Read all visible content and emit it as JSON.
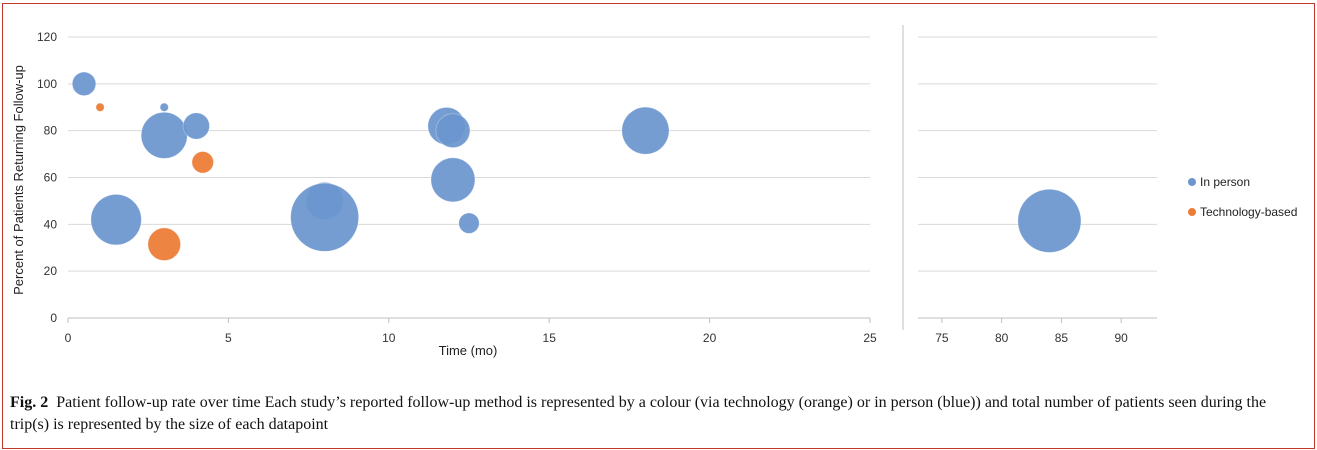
{
  "figure_label": "Fig. 2",
  "caption_text": "Patient follow-up rate over time Each study’s reported follow-up method is represented by a colour (via technology (orange) or in person (blue)) and total number of patients seen during the trip(s) is represented by the size of each datapoint",
  "chart_data": {
    "type": "scatter",
    "subtype": "bubble",
    "xlabel": "Time (mo)",
    "ylabel": "Percent of Patients Returning Follow-up",
    "ylim": [
      0,
      120
    ],
    "y_ticks": [
      0,
      20,
      40,
      60,
      80,
      100,
      120
    ],
    "x_segments": [
      {
        "xlim": [
          0,
          25
        ],
        "ticks": [
          0,
          5,
          10,
          15,
          20,
          25
        ]
      },
      {
        "xlim": [
          73,
          93
        ],
        "ticks": [
          75,
          80,
          85,
          90
        ]
      }
    ],
    "grid": true,
    "legend_position": "right",
    "series": [
      {
        "name": "In person",
        "color": "#6b96cf",
        "points": [
          {
            "x": 0.5,
            "y": 100,
            "size": 12
          },
          {
            "x": 3.0,
            "y": 90,
            "size": 1.5
          },
          {
            "x": 3.0,
            "y": 78,
            "size": 46
          },
          {
            "x": 4.0,
            "y": 82,
            "size": 15
          },
          {
            "x": 1.5,
            "y": 42,
            "size": 55
          },
          {
            "x": 8.0,
            "y": 50,
            "size": 30
          },
          {
            "x": 8.0,
            "y": 43,
            "size": 100
          },
          {
            "x": 11.8,
            "y": 82,
            "size": 30
          },
          {
            "x": 12.0,
            "y": 80,
            "size": 25
          },
          {
            "x": 12.0,
            "y": 59,
            "size": 42
          },
          {
            "x": 12.5,
            "y": 40.5,
            "size": 9
          },
          {
            "x": 18.0,
            "y": 80,
            "size": 48
          },
          {
            "x": 84.0,
            "y": 41.5,
            "size": 86
          }
        ]
      },
      {
        "name": "Technology-based",
        "color": "#ec7b34",
        "points": [
          {
            "x": 1.0,
            "y": 90,
            "size": 1.5
          },
          {
            "x": 4.2,
            "y": 66.5,
            "size": 10
          },
          {
            "x": 3.0,
            "y": 31.5,
            "size": 23
          }
        ]
      }
    ]
  }
}
